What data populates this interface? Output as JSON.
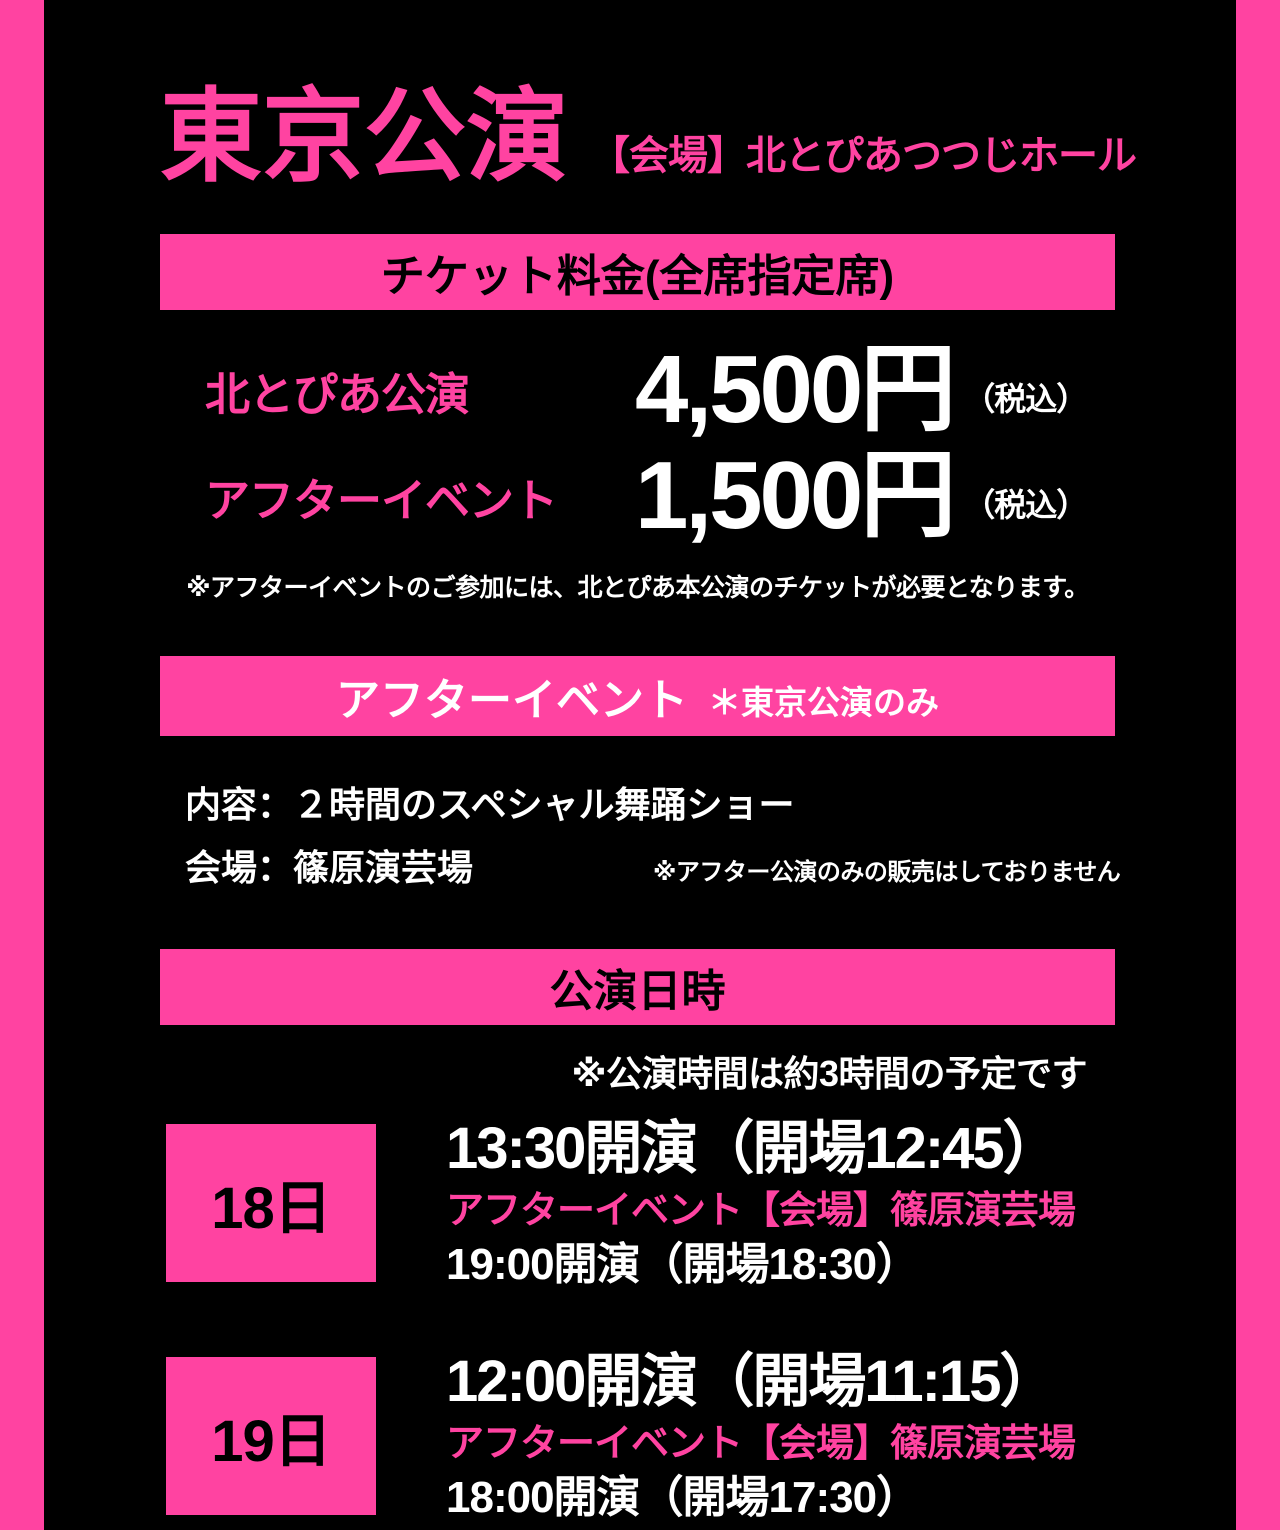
{
  "colors": {
    "accent": "#ff43a1",
    "background": "#000000",
    "price_text": "#ffffff",
    "banner_text_dark": "#000000"
  },
  "header": {
    "title": "東京公演",
    "venue": "【会場】北とぴあつつじホール"
  },
  "ticket": {
    "banner": "チケット料金(全席指定席)",
    "rows": [
      {
        "label": "北とぴあ公演",
        "price": "4,500円",
        "tax_note": "（税込）"
      },
      {
        "label": "アフターイベント",
        "price": "1,500円",
        "tax_note": "（税込）"
      }
    ],
    "note": "※アフターイベントのご参加には、北とぴあ本公演のチケットが必要となります。"
  },
  "after_event": {
    "banner": "アフターイベント",
    "banner_note": "＊東京公演のみ",
    "content_line": "内容：２時間のスペシャル舞踊ショー",
    "venue_line": "会場：篠原演芸場",
    "venue_note": "※アフター公演のみの販売はしておりません"
  },
  "schedule": {
    "banner": "公演日時",
    "duration_note": "※公演時間は約3時間の予定です",
    "days": [
      {
        "date": "18日",
        "main_time": "13:30開演（開場12:45）",
        "after_label": "アフターイベント【会場】篠原演芸場",
        "after_time": "19:00開演（開場18:30）"
      },
      {
        "date": "19日",
        "main_time": "12:00開演（開場11:15）",
        "after_label": "アフターイベント【会場】篠原演芸場",
        "after_time": "18:00開演（開場17:30）"
      }
    ]
  }
}
